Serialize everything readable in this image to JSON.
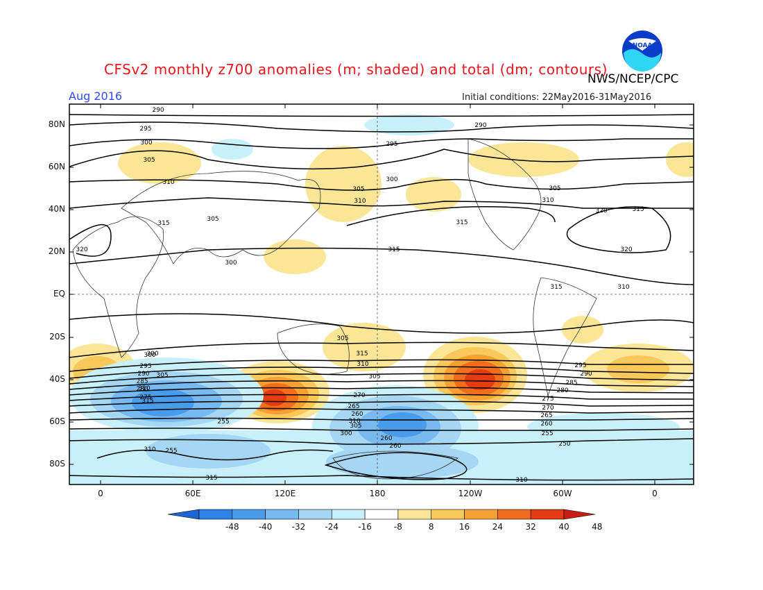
{
  "header": {
    "title": "CFSv2 monthly z700 anomalies (m; shaded) and total (dm; contours)",
    "org": "NWS/NCEP/CPC",
    "logo_text": "NOAA",
    "period": "Aug 2016",
    "initial_conditions": "Initial conditions: 22May2016-31May2016"
  },
  "axes": {
    "lat_labels": [
      "80N",
      "60N",
      "40N",
      "20N",
      "EQ",
      "20S",
      "40S",
      "60S",
      "80S"
    ],
    "lon_labels": [
      "0",
      "60E",
      "120E",
      "180",
      "120W",
      "60W",
      "0"
    ]
  },
  "colorbar": {
    "labels": [
      "-48",
      "-40",
      "-32",
      "-24",
      "-16",
      "-8",
      "8",
      "16",
      "24",
      "32",
      "40",
      "48"
    ],
    "colors": [
      "#1e64d2",
      "#2d82e6",
      "#4b9beb",
      "#78b9f0",
      "#a5d7f5",
      "#c8f0fa",
      "#ffffff",
      "#fae696",
      "#fac85a",
      "#f5a032",
      "#f06e1e",
      "#e63c14",
      "#c81e14"
    ]
  },
  "contour_labels": [
    "290",
    "295",
    "300",
    "305",
    "310",
    "315",
    "320",
    "305",
    "310",
    "295",
    "290",
    "300",
    "305",
    "310",
    "315",
    "315",
    "320",
    "315",
    "320",
    "315",
    "310",
    "300",
    "305",
    "315",
    "310",
    "305",
    "300",
    "295",
    "290",
    "285",
    "280",
    "275",
    "270",
    "265",
    "260",
    "310",
    "305",
    "300",
    "295",
    "290",
    "285",
    "280",
    "275",
    "270",
    "265",
    "260",
    "255",
    "250",
    "255",
    "260",
    "260",
    "255",
    "310",
    "315",
    "310",
    "305",
    "300",
    "305",
    "310",
    "315"
  ]
}
